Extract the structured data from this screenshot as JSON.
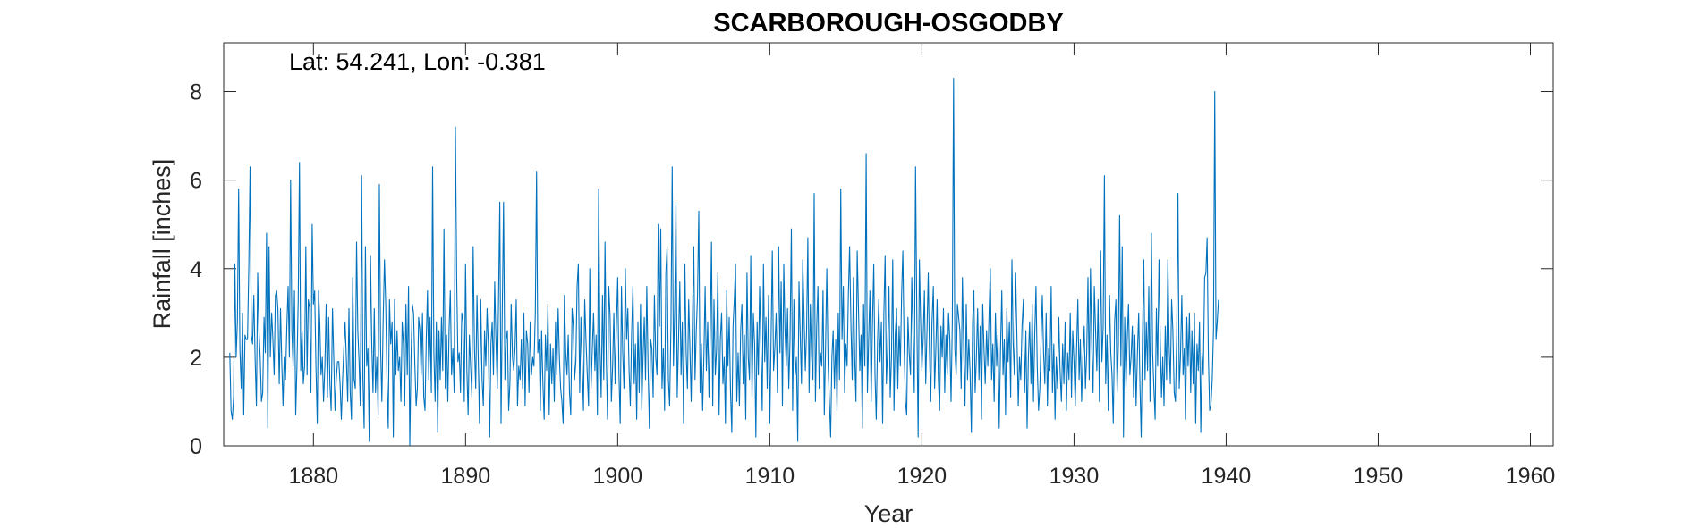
{
  "chart_data": {
    "type": "line",
    "title": "SCARBOROUGH-OSGODBY",
    "xlabel": "Year",
    "ylabel": "Rainfall [inches]",
    "annotation": "Lat: 54.241, Lon: -0.381",
    "xlim": [
      1874.1,
      1961.5
    ],
    "ylim": [
      0,
      9.1
    ],
    "x_ticks": [
      1880,
      1890,
      1900,
      1910,
      1920,
      1930,
      1940,
      1950,
      1960
    ],
    "y_ticks": [
      0,
      2,
      4,
      6,
      8
    ],
    "grid": false,
    "legend": "none",
    "line_color": "#0072BD",
    "series": [
      {
        "x_start": 1874.5,
        "x_step": 0.083333,
        "values": [
          2.1,
          0.8,
          0.6,
          1.1,
          4.1,
          2.0,
          2.8,
          5.8,
          2.2,
          1.3,
          3.0,
          0.7,
          2.5,
          2.4,
          2.4,
          4.1,
          6.3,
          2.5,
          2.3,
          3.4,
          2.0,
          0.9,
          3.9,
          2.6,
          2.0,
          1.0,
          1.2,
          2.9,
          2.1,
          4.8,
          0.4,
          4.5,
          2.0,
          3.0,
          2.4,
          1.6,
          3.4,
          3.5,
          3.1,
          1.4,
          3.1,
          1.9,
          0.9,
          2.0,
          1.5,
          2.7,
          3.6,
          2.0,
          6.0,
          2.6,
          1.8,
          3.5,
          0.7,
          1.8,
          3.3,
          6.4,
          1.7,
          2.6,
          1.4,
          1.8,
          4.5,
          1.6,
          3.3,
          3.1,
          1.2,
          5.0,
          3.2,
          3.5,
          1.8,
          0.5,
          3.5,
          2.8,
          1.6,
          2.0,
          1.0,
          1.8,
          3.2,
          1.1,
          2.9,
          1.4,
          0.8,
          3.1,
          2.0,
          0.8,
          1.5,
          1.9,
          1.9,
          1.4,
          0.6,
          1.5,
          2.2,
          2.8,
          1.9,
          1.0,
          3.1,
          1.2,
          0.6,
          3.8,
          1.5,
          1.3,
          4.6,
          2.6,
          1.9,
          0.9,
          6.1,
          1.5,
          0.4,
          4.5,
          1.8,
          2.2,
          0.1,
          4.3,
          2.3,
          1.2,
          3.1,
          1.2,
          2.0,
          0.7,
          5.9,
          2.2,
          1.0,
          2.8,
          4.2,
          3.2,
          1.5,
          0.4,
          3.3,
          2.3,
          2.8,
          0.2,
          3.3,
          1.6,
          2.6,
          1.7,
          2.0,
          1.0,
          2.8,
          2.3,
          0.9,
          3.2,
          1.6,
          3.6,
          0.0,
          2.0,
          3.2,
          3.0,
          1.8,
          0.9,
          1.3,
          2.9,
          2.6,
          1.6,
          3.0,
          1.1,
          0.8,
          2.4,
          3.5,
          1.5,
          2.9,
          1.2,
          6.3,
          2.1,
          1.0,
          2.8,
          0.3,
          2.6,
          1.5,
          2.9,
          1.7,
          4.9,
          1.3,
          2.5,
          1.0,
          2.6,
          3.5,
          1.6,
          2.2,
          1.2,
          7.2,
          3.8,
          1.9,
          2.1,
          1.2,
          3.0,
          2.8,
          1.0,
          4.1,
          1.7,
          0.7,
          2.5,
          1.8,
          1.1,
          4.5,
          2.2,
          1.3,
          3.4,
          2.0,
          0.5,
          3.3,
          1.5,
          0.9,
          2.6,
          1.8,
          3.1,
          2.3,
          0.2,
          2.3,
          2.8,
          1.6,
          3.7,
          2.4,
          1.3,
          3.3,
          5.5,
          0.5,
          3.1,
          5.5,
          1.5,
          2.4,
          2.6,
          0.8,
          1.4,
          3.2,
          2.0,
          1.7,
          2.2,
          3.3,
          0.9,
          1.8,
          1.5,
          2.4,
          1.3,
          3.0,
          0.9,
          2.6,
          2.3,
          1.2,
          2.8,
          1.6,
          2.0,
          1.8,
          3.0,
          6.2,
          2.1,
          2.4,
          0.8,
          2.6,
          1.4,
          0.6,
          2.5,
          1.7,
          3.2,
          0.7,
          2.3,
          1.4,
          2.2,
          1.0,
          2.8,
          1.6,
          3.1,
          2.0,
          1.3,
          1.0,
          0.5,
          3.4,
          2.1,
          1.6,
          2.5,
          1.2,
          0.7,
          3.1,
          2.7,
          1.5,
          1.9,
          3.6,
          4.1,
          1.2,
          2.9,
          1.8,
          0.8,
          3.3,
          2.4,
          1.6,
          0.9,
          4.0,
          1.3,
          2.2,
          3.0,
          1.7,
          2.5,
          0.7,
          5.8,
          2.3,
          1.1,
          3.4,
          1.5,
          4.6,
          2.0,
          0.6,
          3.6,
          2.9,
          1.0,
          1.8,
          3.0,
          1.4,
          2.7,
          3.8,
          1.6,
          0.5,
          3.6,
          2.1,
          1.3,
          4.0,
          2.4,
          3.1,
          1.7,
          0.9,
          2.5,
          3.6,
          1.4,
          2.3,
          0.6,
          2.8,
          1.2,
          3.2,
          0.8,
          2.0,
          2.9,
          1.5,
          3.6,
          1.7,
          0.4,
          2.4,
          2.2,
          1.1,
          3.4,
          2.0,
          1.6,
          5.0,
          2.7,
          4.9,
          1.3,
          2.2,
          0.8,
          3.9,
          4.5,
          1.5,
          0.9,
          2.7,
          6.3,
          1.8,
          3.1,
          5.5,
          1.1,
          2.4,
          3.7,
          1.6,
          2.8,
          0.5,
          4.1,
          2.1,
          1.3,
          3.3,
          2.2,
          1.0,
          2.9,
          4.5,
          1.5,
          2.6,
          3.4,
          5.3,
          1.2,
          2.3,
          0.8,
          2.0,
          3.6,
          1.7,
          2.8,
          1.1,
          2.5,
          4.6,
          0.9,
          3.3,
          1.6,
          2.2,
          3.9,
          0.7,
          2.4,
          3.0,
          1.4,
          2.0,
          0.5,
          3.5,
          1.8,
          2.9,
          1.2,
          0.3,
          2.7,
          3.3,
          4.1,
          1.0,
          2.1,
          0.9,
          2.6,
          3.2,
          1.4,
          2.5,
          0.6,
          3.9,
          2.0,
          1.5,
          4.3,
          1.1,
          3.0,
          2.3,
          0.2,
          2.8,
          1.6,
          3.6,
          2.2,
          0.8,
          4.1,
          1.9,
          2.9,
          1.3,
          3.4,
          0.5,
          2.4,
          4.4,
          1.7,
          2.2,
          3.0,
          1.2,
          4.5,
          2.1,
          3.7,
          0.9,
          4.1,
          2.6,
          1.8,
          3.1,
          1.3,
          2.4,
          4.9,
          0.8,
          3.3,
          1.6,
          2.0,
          0.1,
          3.7,
          2.5,
          1.4,
          4.2,
          3.0,
          1.7,
          2.6,
          4.7,
          1.2,
          3.2,
          2.0,
          1.5,
          5.7,
          1.0,
          2.7,
          3.6,
          1.3,
          2.1,
          1.8,
          3.5,
          0.7,
          2.2,
          4.0,
          1.8,
          1.0,
          0.2,
          2.0,
          2.6,
          1.3,
          2.4,
          0.8,
          3.0,
          1.5,
          5.8,
          2.4,
          3.6,
          1.2,
          2.3,
          1.8,
          3.4,
          4.5,
          2.7,
          1.5,
          3.8,
          2.0,
          1.0,
          4.4,
          3.0,
          1.7,
          2.5,
          0.4,
          3.2,
          1.8,
          6.6,
          1.2,
          2.4,
          3.5,
          1.0,
          2.7,
          4.1,
          1.6,
          0.6,
          2.3,
          3.3,
          1.9,
          2.8,
          0.5,
          3.0,
          4.3,
          1.4,
          2.2,
          3.6,
          1.1,
          2.0,
          4.2,
          0.8,
          2.5,
          3.1,
          1.3,
          2.7,
          1.8,
          3.4,
          4.4,
          2.2,
          1.0,
          0.7,
          2.9,
          2.1,
          1.6,
          3.8,
          2.5,
          1.2,
          6.3,
          3.0,
          0.2,
          4.2,
          2.8,
          1.7,
          2.4,
          3.5,
          1.4,
          2.6,
          3.9,
          2.1,
          1.0,
          2.8,
          3.6,
          1.3,
          2.2,
          3.3,
          1.5,
          0.8,
          2.7,
          2.0,
          3.1,
          1.2,
          2.5,
          1.6,
          3.0,
          2.4,
          1.0,
          2.8,
          8.3,
          2.2,
          1.6,
          3.2,
          2.9,
          2.6,
          1.3,
          3.8,
          2.1,
          0.9,
          3.2,
          1.5,
          2.4,
          1.7,
          0.3,
          2.8,
          3.5,
          1.2,
          2.0,
          3.1,
          1.5,
          2.7,
          0.6,
          3.2,
          2.2,
          1.4,
          2.6,
          1.8,
          3.0,
          4.0,
          1.5,
          2.3,
          1.0,
          3.0,
          1.8,
          2.5,
          0.4,
          2.1,
          3.5,
          1.6,
          2.4,
          0.7,
          3.1,
          1.9,
          2.8,
          1.1,
          4.2,
          2.3,
          1.6,
          3.9,
          2.4,
          0.9,
          2.0,
          1.5,
          2.7,
          3.3,
          1.2,
          2.6,
          0.4,
          2.0,
          2.8,
          1.4,
          3.2,
          1.0,
          2.5,
          3.6,
          1.8,
          0.8,
          1.3,
          2.4,
          3.4,
          2.1,
          1.4,
          3.0,
          0.9,
          2.2,
          1.7,
          3.6,
          1.2,
          2.3,
          0.6,
          2.0,
          1.3,
          2.9,
          1.7,
          1.0,
          2.3,
          1.4,
          2.8,
          0.8,
          2.1,
          1.5,
          3.0,
          1.1,
          2.6,
          1.9,
          0.9,
          2.2,
          3.3,
          1.5,
          2.4,
          1.0,
          2.0,
          2.7,
          1.3,
          2.1,
          3.8,
          1.5,
          4.0,
          2.2,
          1.2,
          3.6,
          2.6,
          1.7,
          3.3,
          1.0,
          4.4,
          1.9,
          2.7,
          6.1,
          1.4,
          2.5,
          0.8,
          3.4,
          2.1,
          1.6,
          0.5,
          2.8,
          3.3,
          1.2,
          2.3,
          5.2,
          1.8,
          4.5,
          0.2,
          2.9,
          1.3,
          2.4,
          3.2,
          1.6,
          2.0,
          2.7,
          1.1,
          2.5,
          0.9,
          2.1,
          3.0,
          1.4,
          0.2,
          2.4,
          4.2,
          1.5,
          2.8,
          1.7,
          3.6,
          1.0,
          4.8,
          2.1,
          1.3,
          0.6,
          3.1,
          1.8,
          4.2,
          2.4,
          1.1,
          2.0,
          0.9,
          2.7,
          1.5,
          4.2,
          2.3,
          1.4,
          3.3,
          2.6,
          1.2,
          1.0,
          2.5,
          5.7,
          1.3,
          2.0,
          3.4,
          1.6,
          2.2,
          0.6,
          2.9,
          1.8,
          3.0,
          1.2,
          2.6,
          1.4,
          3.0,
          0.5,
          2.3,
          1.7,
          2.8,
          0.3,
          2.1,
          1.6,
          3.8,
          3.9,
          4.7,
          2.0,
          0.8,
          0.9,
          1.5,
          2.6,
          8.0,
          2.4,
          2.8,
          3.3
        ]
      }
    ]
  }
}
